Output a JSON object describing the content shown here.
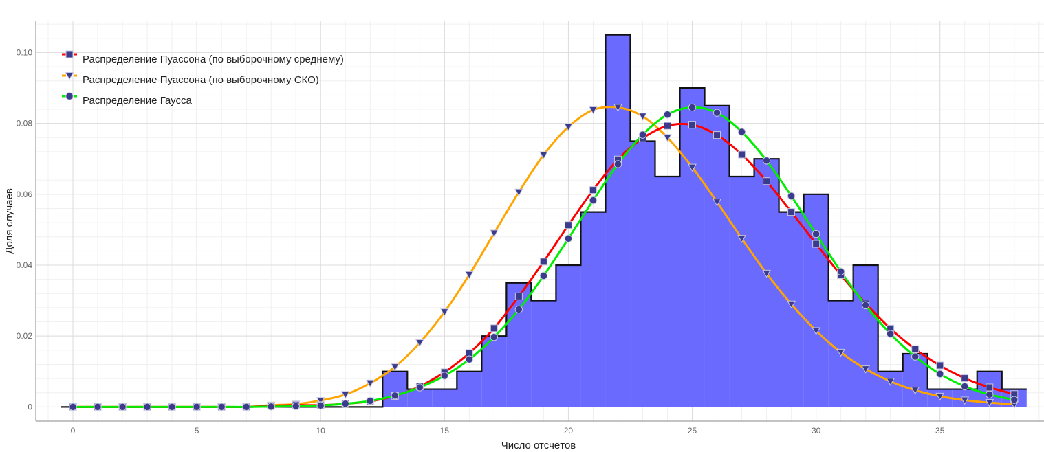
{
  "chart_data": {
    "type": "bar",
    "title": "",
    "xlabel": "Число отсчётов",
    "ylabel": "Доля случаев",
    "xlim": [
      -1.5,
      39.2
    ],
    "ylim": [
      -0.004,
      0.109
    ],
    "x_ticks": [
      "0",
      "5",
      "10",
      "15",
      "20",
      "25",
      "30",
      "35"
    ],
    "x_tick_values": [
      0,
      5,
      10,
      15,
      20,
      25,
      30,
      35
    ],
    "y_ticks": [
      "0",
      "0.02",
      "0.04",
      "0.06",
      "0.08",
      "0.10"
    ],
    "y_tick_values": [
      0,
      0.02,
      0.04,
      0.06,
      0.08,
      0.1
    ],
    "grid": true,
    "legend_position": "top-left",
    "histogram": {
      "fill": "#6a6aff",
      "edge": "#111111",
      "x": [
        -0.5,
        0,
        1,
        2,
        3,
        4,
        5,
        6,
        7,
        8,
        9,
        10,
        11,
        12,
        13,
        14,
        15,
        16,
        17,
        18,
        19,
        20,
        21,
        22,
        23,
        24,
        25,
        26,
        27,
        28,
        29,
        30,
        31,
        32,
        33,
        34,
        35,
        36,
        37,
        38
      ],
      "values": [
        0,
        0,
        0,
        0,
        0,
        0,
        0,
        0,
        0,
        0,
        0,
        0,
        0,
        0,
        0.01,
        0.005,
        0.005,
        0.01,
        0.02,
        0.035,
        0.03,
        0.04,
        0.055,
        0.105,
        0.075,
        0.065,
        0.09,
        0.085,
        0.065,
        0.07,
        0.055,
        0.06,
        0.03,
        0.04,
        0.01,
        0.015,
        0.005,
        0.005,
        0.01,
        0.005
      ]
    },
    "series": [
      {
        "name": "Распределение Пуассона (по выборочному среднему)",
        "color": "#ff0000",
        "marker": "square",
        "x": [
          0,
          1,
          2,
          3,
          4,
          5,
          6,
          7,
          8,
          9,
          10,
          11,
          12,
          13,
          14,
          15,
          16,
          17,
          18,
          19,
          20,
          21,
          22,
          23,
          24,
          25,
          26,
          27,
          28,
          29,
          30,
          31,
          32,
          33,
          34,
          35,
          36,
          37,
          38
        ],
        "values": [
          0,
          0,
          0,
          0,
          0,
          0,
          0,
          0,
          0.0003,
          0.0005,
          0.0005,
          0.0009,
          0.0016,
          0.0031,
          0.0058,
          0.0098,
          0.0152,
          0.0222,
          0.0312,
          0.041,
          0.0513,
          0.0612,
          0.0698,
          0.0758,
          0.0793,
          0.0796,
          0.0767,
          0.0712,
          0.0637,
          0.055,
          0.046,
          0.0372,
          0.0292,
          0.0221,
          0.0163,
          0.0117,
          0.0081,
          0.0055,
          0.0036
        ]
      },
      {
        "name": "Распределение Пуассона (по выборочному СКО)",
        "color": "#ffa500",
        "marker": "triangle-down",
        "x": [
          0,
          1,
          2,
          3,
          4,
          5,
          6,
          7,
          8,
          9,
          10,
          11,
          12,
          13,
          14,
          15,
          16,
          17,
          18,
          19,
          20,
          21,
          22,
          23,
          24,
          25,
          26,
          27,
          28,
          29,
          30,
          31,
          32,
          33,
          34,
          35,
          36,
          37,
          38
        ],
        "values": [
          0,
          0,
          0,
          0,
          0,
          0,
          0,
          0,
          0.0005,
          0.0008,
          0.0018,
          0.0035,
          0.0067,
          0.0113,
          0.0181,
          0.0268,
          0.0373,
          0.049,
          0.0606,
          0.0711,
          0.079,
          0.0838,
          0.0845,
          0.082,
          0.076,
          0.0676,
          0.0578,
          0.0475,
          0.0377,
          0.029,
          0.0215,
          0.0154,
          0.0107,
          0.0072,
          0.0047,
          0.003,
          0.0019,
          0.0012,
          0.0007
        ]
      },
      {
        "name": "Распределение Гаусса",
        "color": "#00ee00",
        "marker": "circle",
        "x": [
          0,
          1,
          2,
          3,
          4,
          5,
          6,
          7,
          8,
          9,
          10,
          11,
          12,
          13,
          14,
          15,
          16,
          17,
          18,
          19,
          20,
          21,
          22,
          23,
          24,
          25,
          26,
          27,
          28,
          29,
          30,
          31,
          32,
          33,
          34,
          35,
          36,
          37,
          38
        ],
        "values": [
          0,
          0,
          0,
          0,
          0,
          0,
          0,
          0,
          0.0001,
          0.0002,
          0.0004,
          0.0009,
          0.0017,
          0.0032,
          0.0055,
          0.0088,
          0.0134,
          0.0197,
          0.0275,
          0.037,
          0.0475,
          0.0583,
          0.0685,
          0.0768,
          0.0825,
          0.0845,
          0.083,
          0.0776,
          0.0695,
          0.0595,
          0.0488,
          0.0382,
          0.0287,
          0.0206,
          0.0142,
          0.0093,
          0.0058,
          0.0035,
          0.002
        ]
      }
    ]
  }
}
